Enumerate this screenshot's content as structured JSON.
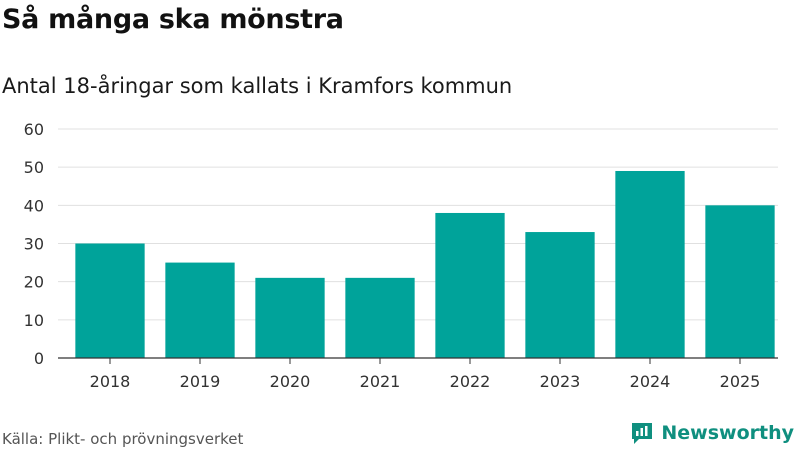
{
  "header": {
    "title": "Så många ska mönstra",
    "subtitle": "Antal 18-åringar som kallats i Kramfors kommun"
  },
  "footer": {
    "source": "Källa: Plikt- och prövningsverket",
    "brand": "Newsworthy"
  },
  "colors": {
    "bar": "#00a39a",
    "brand": "#0f8f7f",
    "grid": "#e0e0e0",
    "axis": "#333333"
  },
  "chart_data": {
    "type": "bar",
    "title": "Så många ska mönstra",
    "subtitle": "Antal 18-åringar som kallats i Kramfors kommun",
    "xlabel": "",
    "ylabel": "",
    "categories": [
      "2018",
      "2019",
      "2020",
      "2021",
      "2022",
      "2023",
      "2024",
      "2025"
    ],
    "values": [
      30,
      25,
      21,
      21,
      38,
      33,
      49,
      40
    ],
    "ylim": [
      0,
      60
    ],
    "yticks": [
      0,
      10,
      20,
      30,
      40,
      50,
      60
    ],
    "grid": true,
    "legend": "none"
  }
}
